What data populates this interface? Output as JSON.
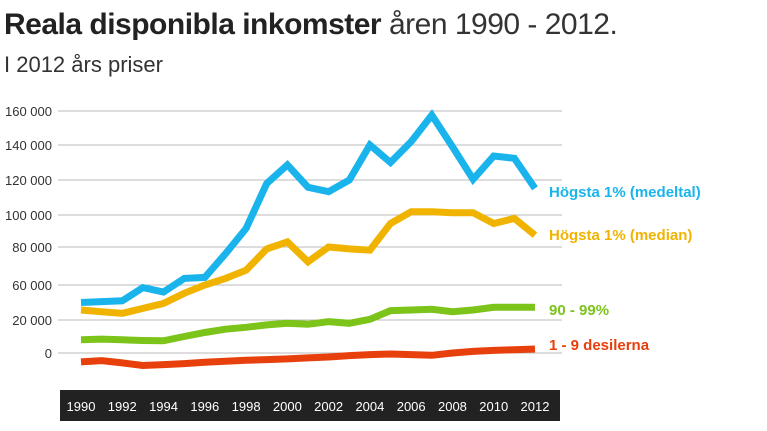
{
  "title_bold": "Reala disponibla inkomster",
  "title_light": "åren 1990 - 2012.",
  "subtitle": "I 2012 års priser",
  "chart_data": {
    "type": "line",
    "title": "Reala disponibla inkomster åren 1990 - 2012.",
    "subtitle": "I 2012 års priser",
    "xlabel": "",
    "ylabel": "",
    "x": [
      1990,
      1991,
      1992,
      1993,
      1994,
      1995,
      1996,
      1997,
      1998,
      1999,
      2000,
      2001,
      2002,
      2003,
      2004,
      2005,
      2006,
      2007,
      2008,
      2009,
      2010,
      2011,
      2012
    ],
    "x_tick_labels": [
      "1990",
      "1992",
      "1994",
      "1996",
      "1998",
      "2000",
      "2002",
      "2004",
      "2006",
      "2008",
      "2010",
      "2012"
    ],
    "y_ticks": [
      0,
      20000,
      60000,
      80000,
      100000,
      120000,
      140000,
      160000
    ],
    "y_tick_labels": [
      "0",
      "20 000",
      "60 000",
      "80 000",
      "100 000",
      "120 000",
      "140 000",
      "160 000"
    ],
    "grid": true,
    "legend": "inline labels at right end of lines",
    "series": [
      {
        "name": "Högsta 1% (medeltal)",
        "color": "#1ab4ec",
        "values": [
          40000,
          41000,
          42000,
          57000,
          52000,
          63500,
          64000,
          76500,
          91600,
          118000,
          128600,
          115800,
          113300,
          120000,
          140000,
          130000,
          142000,
          157600,
          139000,
          120400,
          133700,
          132400,
          115200
        ]
      },
      {
        "name": "Högsta 1% (median)",
        "color": "#f0b400",
        "values": [
          31400,
          29500,
          27600,
          33300,
          39000,
          50500,
          60000,
          63500,
          67800,
          79000,
          83200,
          72200,
          80000,
          79000,
          78300,
          94700,
          101900,
          101900,
          101300,
          101300,
          94700,
          97900,
          87400
        ]
      },
      {
        "name": "90 - 99%",
        "color": "#7cc41a",
        "values": [
          8000,
          8400,
          8000,
          7600,
          7400,
          10000,
          12400,
          14400,
          15600,
          17000,
          18000,
          17400,
          19000,
          18000,
          20800,
          30700,
          31400,
          32200,
          29500,
          31400,
          34500,
          34500,
          34500
        ]
      },
      {
        "name": "1 - 9 desilerna",
        "color": "#e8400c",
        "values": [
          -5400,
          -4600,
          -6000,
          -7600,
          -7000,
          -6400,
          -5600,
          -5000,
          -4400,
          -4000,
          -3600,
          -3000,
          -2400,
          -1600,
          -1000,
          -600,
          -1000,
          -1400,
          0,
          1000,
          1600,
          2000,
          2400
        ]
      }
    ]
  }
}
